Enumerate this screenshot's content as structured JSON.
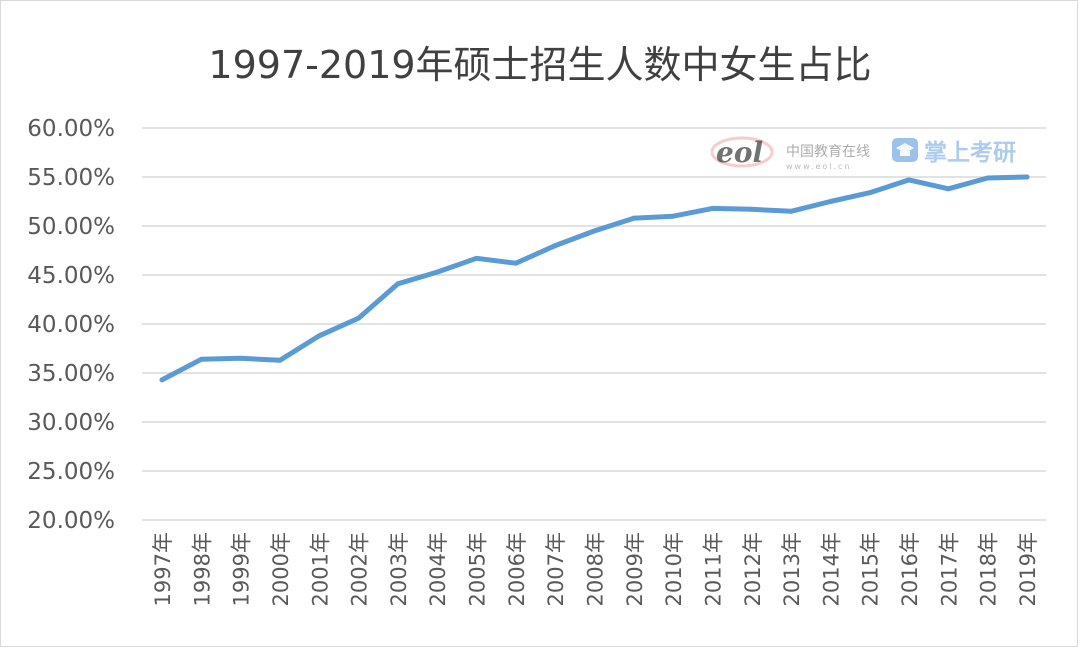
{
  "chart_data": {
    "type": "line",
    "title": "1997-2019年硕士招生人数中女生占比",
    "xlabel": "",
    "ylabel": "",
    "ylim": [
      20,
      60
    ],
    "y_tick_step": 5,
    "y_tick_labels": [
      "20.00%",
      "25.00%",
      "30.00%",
      "35.00%",
      "40.00%",
      "45.00%",
      "50.00%",
      "55.00%",
      "60.00%"
    ],
    "grid": true,
    "legend": "none",
    "categories": [
      "1997年",
      "1998年",
      "1999年",
      "2000年",
      "2001年",
      "2002年",
      "2003年",
      "2004年",
      "2005年",
      "2006年",
      "2007年",
      "2008年",
      "2009年",
      "2010年",
      "2011年",
      "2012年",
      "2013年",
      "2014年",
      "2015年",
      "2016年",
      "2017年",
      "2018年",
      "2019年"
    ],
    "series": [
      {
        "values": [
          34.3,
          36.4,
          36.5,
          36.3,
          38.8,
          40.6,
          44.1,
          45.3,
          46.7,
          46.2,
          48.0,
          49.5,
          50.8,
          51.0,
          51.8,
          51.7,
          51.5,
          52.5,
          53.4,
          54.7,
          53.8,
          54.9,
          55.0
        ],
        "color": "#5b9bd5"
      }
    ]
  },
  "watermark": {
    "eol_logo_text": "eol",
    "site_name": "中国教育在线",
    "site_url": "www.eol.cn",
    "app_name": "掌上考研",
    "eol_color": "#e06666",
    "app_color": "#4a90d9"
  }
}
